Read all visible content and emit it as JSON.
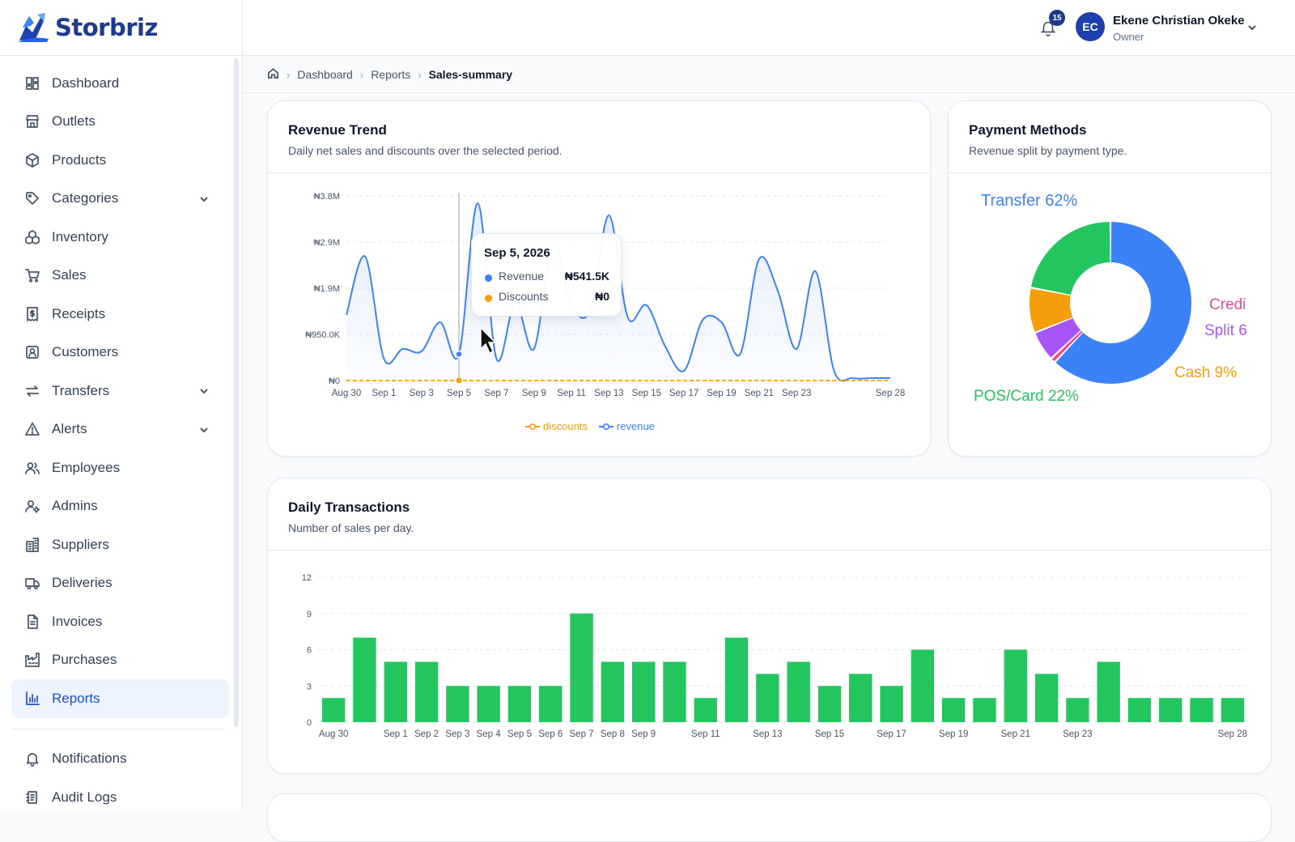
{
  "app": {
    "name": "Storbriz"
  },
  "sidebar": {
    "items": [
      {
        "label": "Dashboard",
        "icon": "dashboard-icon"
      },
      {
        "label": "Outlets",
        "icon": "store-icon"
      },
      {
        "label": "Products",
        "icon": "box-icon"
      },
      {
        "label": "Categories",
        "icon": "tag-icon"
      },
      {
        "label": "Inventory",
        "icon": "boxes-icon"
      },
      {
        "label": "Sales",
        "icon": "cart-icon"
      },
      {
        "label": "Receipts",
        "icon": "receipt-icon"
      },
      {
        "label": "Customers",
        "icon": "contact-icon"
      },
      {
        "label": "Transfers",
        "icon": "transfer-icon"
      },
      {
        "label": "Alerts",
        "icon": "alert-triangle-icon"
      },
      {
        "label": "Employees",
        "icon": "users-icon"
      },
      {
        "label": "Admins",
        "icon": "user-cog-icon"
      },
      {
        "label": "Suppliers",
        "icon": "building-icon"
      },
      {
        "label": "Deliveries",
        "icon": "truck-icon"
      },
      {
        "label": "Invoices",
        "icon": "file-icon"
      },
      {
        "label": "Purchases",
        "icon": "factory-icon"
      },
      {
        "label": "Reports",
        "icon": "bar-chart-icon"
      }
    ],
    "bottom_items": [
      {
        "label": "Notifications",
        "icon": "bell-icon"
      },
      {
        "label": "Audit Logs",
        "icon": "log-icon"
      }
    ],
    "active": "Reports"
  },
  "topbar": {
    "notification_count": "15",
    "user": {
      "initials": "EC",
      "name": "Ekene Christian Okeke",
      "role": "Owner"
    }
  },
  "breadcrumb": [
    "Dashboard",
    "Reports",
    "Sales-summary"
  ],
  "colors": {
    "revenue": "#3b82f6",
    "discounts": "#f59e0b",
    "bars": "#22c55e",
    "accent": "#1d4ed8"
  },
  "revenue_card": {
    "title": "Revenue Trend",
    "subtitle": "Daily net sales and discounts over the selected period.",
    "legend": {
      "discounts": "discounts",
      "revenue": "revenue"
    },
    "tooltip": {
      "date": "Sep 5, 2026",
      "revenue_label": "Revenue",
      "revenue_value": "₦541.5K",
      "discounts_label": "Discounts",
      "discounts_value": "₦0"
    }
  },
  "payment_card": {
    "title": "Payment Methods",
    "subtitle": "Revenue split by payment type."
  },
  "daily_card": {
    "title": "Daily Transactions",
    "subtitle": "Number of sales per day."
  },
  "chart_data": [
    {
      "type": "line",
      "title": "Revenue Trend",
      "y_ticks": [
        "₦0",
        "₦950.0K",
        "₦1.9M",
        "₦2.9M",
        "₦3.8M"
      ],
      "ylim": [
        0,
        3800000
      ],
      "x": [
        "Aug 30",
        "Aug 31",
        "Sep 1",
        "Sep 2",
        "Sep 3",
        "Sep 4",
        "Sep 5",
        "Sep 6",
        "Sep 7",
        "Sep 8",
        "Sep 9",
        "Sep 10",
        "Sep 11",
        "Sep 12",
        "Sep 13",
        "Sep 14",
        "Sep 15",
        "Sep 16",
        "Sep 17",
        "Sep 18",
        "Sep 19",
        "Sep 20",
        "Sep 21",
        "Sep 22",
        "Sep 23",
        "Sep 24",
        "Sep 25",
        "Sep 26",
        "Sep 27",
        "Sep 28"
      ],
      "x_tick_labels": [
        "Aug 30",
        "Sep 1",
        "Sep 3",
        "Sep 5",
        "Sep 7",
        "Sep 9",
        "Sep 11",
        "Sep 13",
        "Sep 15",
        "Sep 17",
        "Sep 19",
        "Sep 21",
        "Sep 23",
        "Sep 28"
      ],
      "series": [
        {
          "name": "revenue",
          "values": [
            1350000,
            2550000,
            450000,
            650000,
            600000,
            1200000,
            541500,
            3650000,
            450000,
            1600000,
            650000,
            2800000,
            1550000,
            1450000,
            3400000,
            1300000,
            1550000,
            700000,
            200000,
            1250000,
            1200000,
            550000,
            2500000,
            1850000,
            650000,
            2250000,
            200000,
            50000,
            50000,
            50000
          ]
        },
        {
          "name": "discounts",
          "values": [
            0,
            0,
            0,
            0,
            0,
            0,
            0,
            0,
            0,
            0,
            0,
            0,
            0,
            0,
            0,
            0,
            0,
            0,
            0,
            0,
            0,
            0,
            0,
            0,
            0,
            0,
            0,
            0,
            0,
            0
          ]
        }
      ],
      "grid": true,
      "legend_position": "bottom"
    },
    {
      "type": "pie",
      "title": "Payment Methods",
      "labels": [
        "Transfer",
        "Credit",
        "Split",
        "Cash",
        "POS/Card"
      ],
      "values": [
        62,
        1,
        6,
        9,
        22
      ],
      "slice_labels": [
        "Transfer 62%",
        "Credi",
        "Split 6",
        "Cash 9%",
        "POS/Card 22%"
      ],
      "colors": [
        "#3b82f6",
        "#ec4899",
        "#a855f7",
        "#f59e0b",
        "#22c55e"
      ]
    },
    {
      "type": "bar",
      "title": "Daily Transactions",
      "categories": [
        "Aug 30",
        "Aug 31",
        "Sep 1",
        "Sep 2",
        "Sep 3",
        "Sep 4",
        "Sep 5",
        "Sep 6",
        "Sep 7",
        "Sep 8",
        "Sep 9",
        "Sep 10",
        "Sep 11",
        "Sep 12",
        "Sep 13",
        "Sep 14",
        "Sep 15",
        "Sep 16",
        "Sep 17",
        "Sep 18",
        "Sep 19",
        "Sep 20",
        "Sep 21",
        "Sep 22",
        "Sep 23",
        "Sep 24",
        "Sep 25",
        "Sep 26",
        "Sep 27",
        "Sep 28"
      ],
      "category_labels_shown": [
        "Aug 30",
        "",
        "Sep 1",
        "Sep 2",
        "Sep 3",
        "Sep 4",
        "Sep 5",
        "Sep 6",
        "Sep 7",
        "Sep 8",
        "Sep 9",
        "",
        "Sep 11",
        "",
        "Sep 13",
        "",
        "Sep 15",
        "",
        "Sep 17",
        "",
        "Sep 19",
        "",
        "Sep 21",
        "",
        "Sep 23",
        "",
        "",
        "",
        "",
        "Sep 28"
      ],
      "values": [
        2,
        7,
        5,
        5,
        3,
        3,
        3,
        3,
        9,
        5,
        5,
        5,
        2,
        7,
        4,
        5,
        3,
        4,
        3,
        6,
        2,
        2,
        6,
        4,
        2,
        5,
        2,
        2,
        2,
        2
      ],
      "y_ticks": [
        "0",
        "3",
        "6",
        "9",
        "12"
      ],
      "ylim": [
        0,
        12
      ],
      "grid": true
    }
  ]
}
